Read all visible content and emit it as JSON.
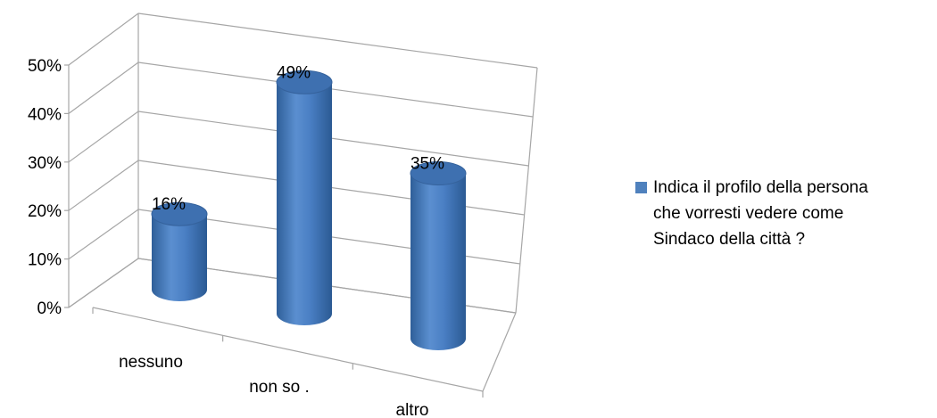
{
  "chart_data": {
    "type": "bar",
    "style": "3d-cylinder",
    "categories": [
      "nessuno",
      "non so .",
      "altro"
    ],
    "series": [
      {
        "name": "Indica il profilo della persona che vorresti vedere come Sindaco della città ?",
        "values": [
          16,
          49,
          35
        ],
        "data_labels": [
          "16%",
          "49%",
          "35%"
        ],
        "color": "#4F81BD"
      }
    ],
    "y_ticks": [
      "0%",
      "10%",
      "20%",
      "30%",
      "40%",
      "50%"
    ],
    "ylim": [
      0,
      50
    ],
    "grid": true,
    "legend_position": "right"
  },
  "legend": {
    "line1": "Indica il profilo della persona",
    "line2": "che vorresti vedere come",
    "line3": "Sindaco della città ?"
  }
}
